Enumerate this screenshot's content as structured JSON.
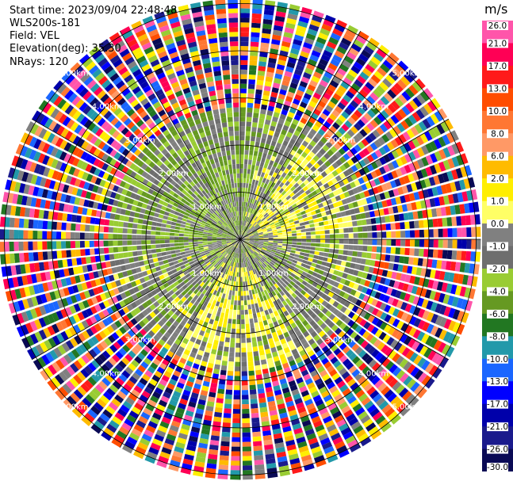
{
  "header": {
    "start_time": "Start time: 2023/09/04 22:48:48",
    "instrument": "WLS200s-181",
    "field": "Field: VEL",
    "elevation": "Elevation(deg): 35.30",
    "nrays": "NRays: 120"
  },
  "chart_data": {
    "type": "heatmap",
    "projection": "polar-ppi",
    "field": "VEL",
    "units": "m/s",
    "nrays": 120,
    "range_rings_km": [
      1,
      2,
      3,
      4,
      5
    ],
    "ring_label_text": [
      "1.00km",
      "2.00km",
      "3.00km",
      "4.00km",
      "5.00km"
    ],
    "max_range_km": 5.1,
    "colorbar": {
      "units": "m/s",
      "tick_labels": [
        "26.0",
        "21.0",
        "17.0",
        "13.0",
        "10.0",
        "8.0",
        "6.0",
        "2.0",
        "1.0",
        "0.0",
        "-1.0",
        "-2.0",
        "-4.0",
        "-6.0",
        "-8.0",
        "-10.0",
        "-13.0",
        "-17.0",
        "-21.0",
        "-26.0",
        "-30.0"
      ],
      "colors": [
        "#ff55aa",
        "#ff0055",
        "#ff1a1a",
        "#ff4d00",
        "#ff7733",
        "#ff9966",
        "#ffbb00",
        "#ffee00",
        "#ffff66",
        "#808080",
        "#6e6e6e",
        "#99cc33",
        "#669922",
        "#227722",
        "#2299aa",
        "#1a66ff",
        "#0000ff",
        "#0000aa",
        "#1a1a8c",
        "#0a0a55"
      ]
    },
    "grid": true
  }
}
